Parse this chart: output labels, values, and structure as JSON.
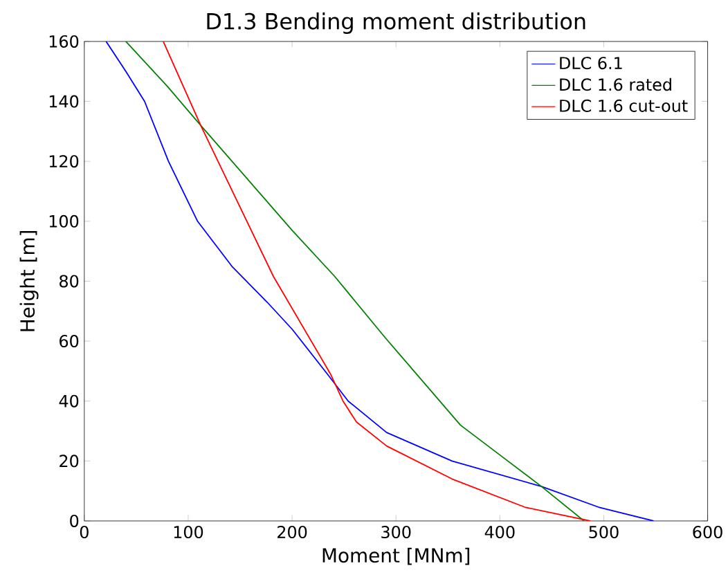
{
  "chart_data": {
    "type": "line",
    "title": "D1.3 Bending moment distribution",
    "xlabel": "Moment [MNm]",
    "ylabel": "Height [m]",
    "xlim": [
      0,
      600
    ],
    "ylim": [
      0,
      160
    ],
    "xticks": [
      0,
      100,
      200,
      300,
      400,
      500,
      600
    ],
    "yticks": [
      0,
      20,
      40,
      60,
      80,
      100,
      120,
      140,
      160
    ],
    "legend": "top right",
    "grid": false,
    "series": [
      {
        "name": "DLC 6.1",
        "color": "#0000ff",
        "x": [
          548,
          495,
          440,
          354,
          291,
          254,
          234,
          200,
          176,
          142,
          109,
          81,
          58,
          40,
          21
        ],
        "values": [
          0,
          4.6,
          11.5,
          20,
          29.5,
          40,
          49,
          64,
          73,
          85,
          100,
          120,
          140,
          150,
          160
        ]
      },
      {
        "name": "DLC 1.6 rated",
        "color": "#008000",
        "x": [
          481,
          440,
          400,
          362,
          290,
          241,
          200,
          112,
          80,
          40
        ],
        "values": [
          0,
          11.5,
          22,
          32,
          61,
          81.6,
          97,
          132,
          145,
          160
        ]
      },
      {
        "name": "DLC 1.6 cut-out",
        "color": "#ff0000",
        "x": [
          487,
          424,
          354,
          291,
          262,
          249,
          237,
          182,
          112,
          76
        ],
        "values": [
          0,
          4.6,
          14,
          25,
          33,
          40,
          49,
          81.6,
          132,
          160
        ]
      }
    ]
  }
}
